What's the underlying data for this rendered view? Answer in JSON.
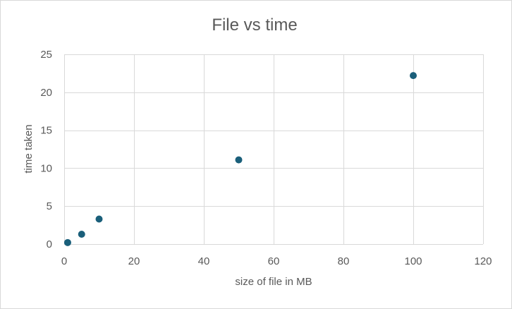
{
  "chart_data": {
    "type": "scatter",
    "title": "File vs time",
    "xlabel": "size of file in MB",
    "ylabel": "time taken",
    "xlim": [
      0,
      120
    ],
    "ylim": [
      0,
      25
    ],
    "xticks": [
      "0",
      "20",
      "40",
      "60",
      "80",
      "100",
      "120"
    ],
    "yticks": [
      "0",
      "5",
      "10",
      "15",
      "20",
      "25"
    ],
    "grid": true,
    "legend": "none",
    "marker_color": "#1a5f7a",
    "series": [
      {
        "x": [
          1,
          5,
          10,
          50,
          100
        ],
        "y": [
          0.2,
          1.3,
          3.3,
          11.1,
          22.2
        ]
      }
    ]
  }
}
